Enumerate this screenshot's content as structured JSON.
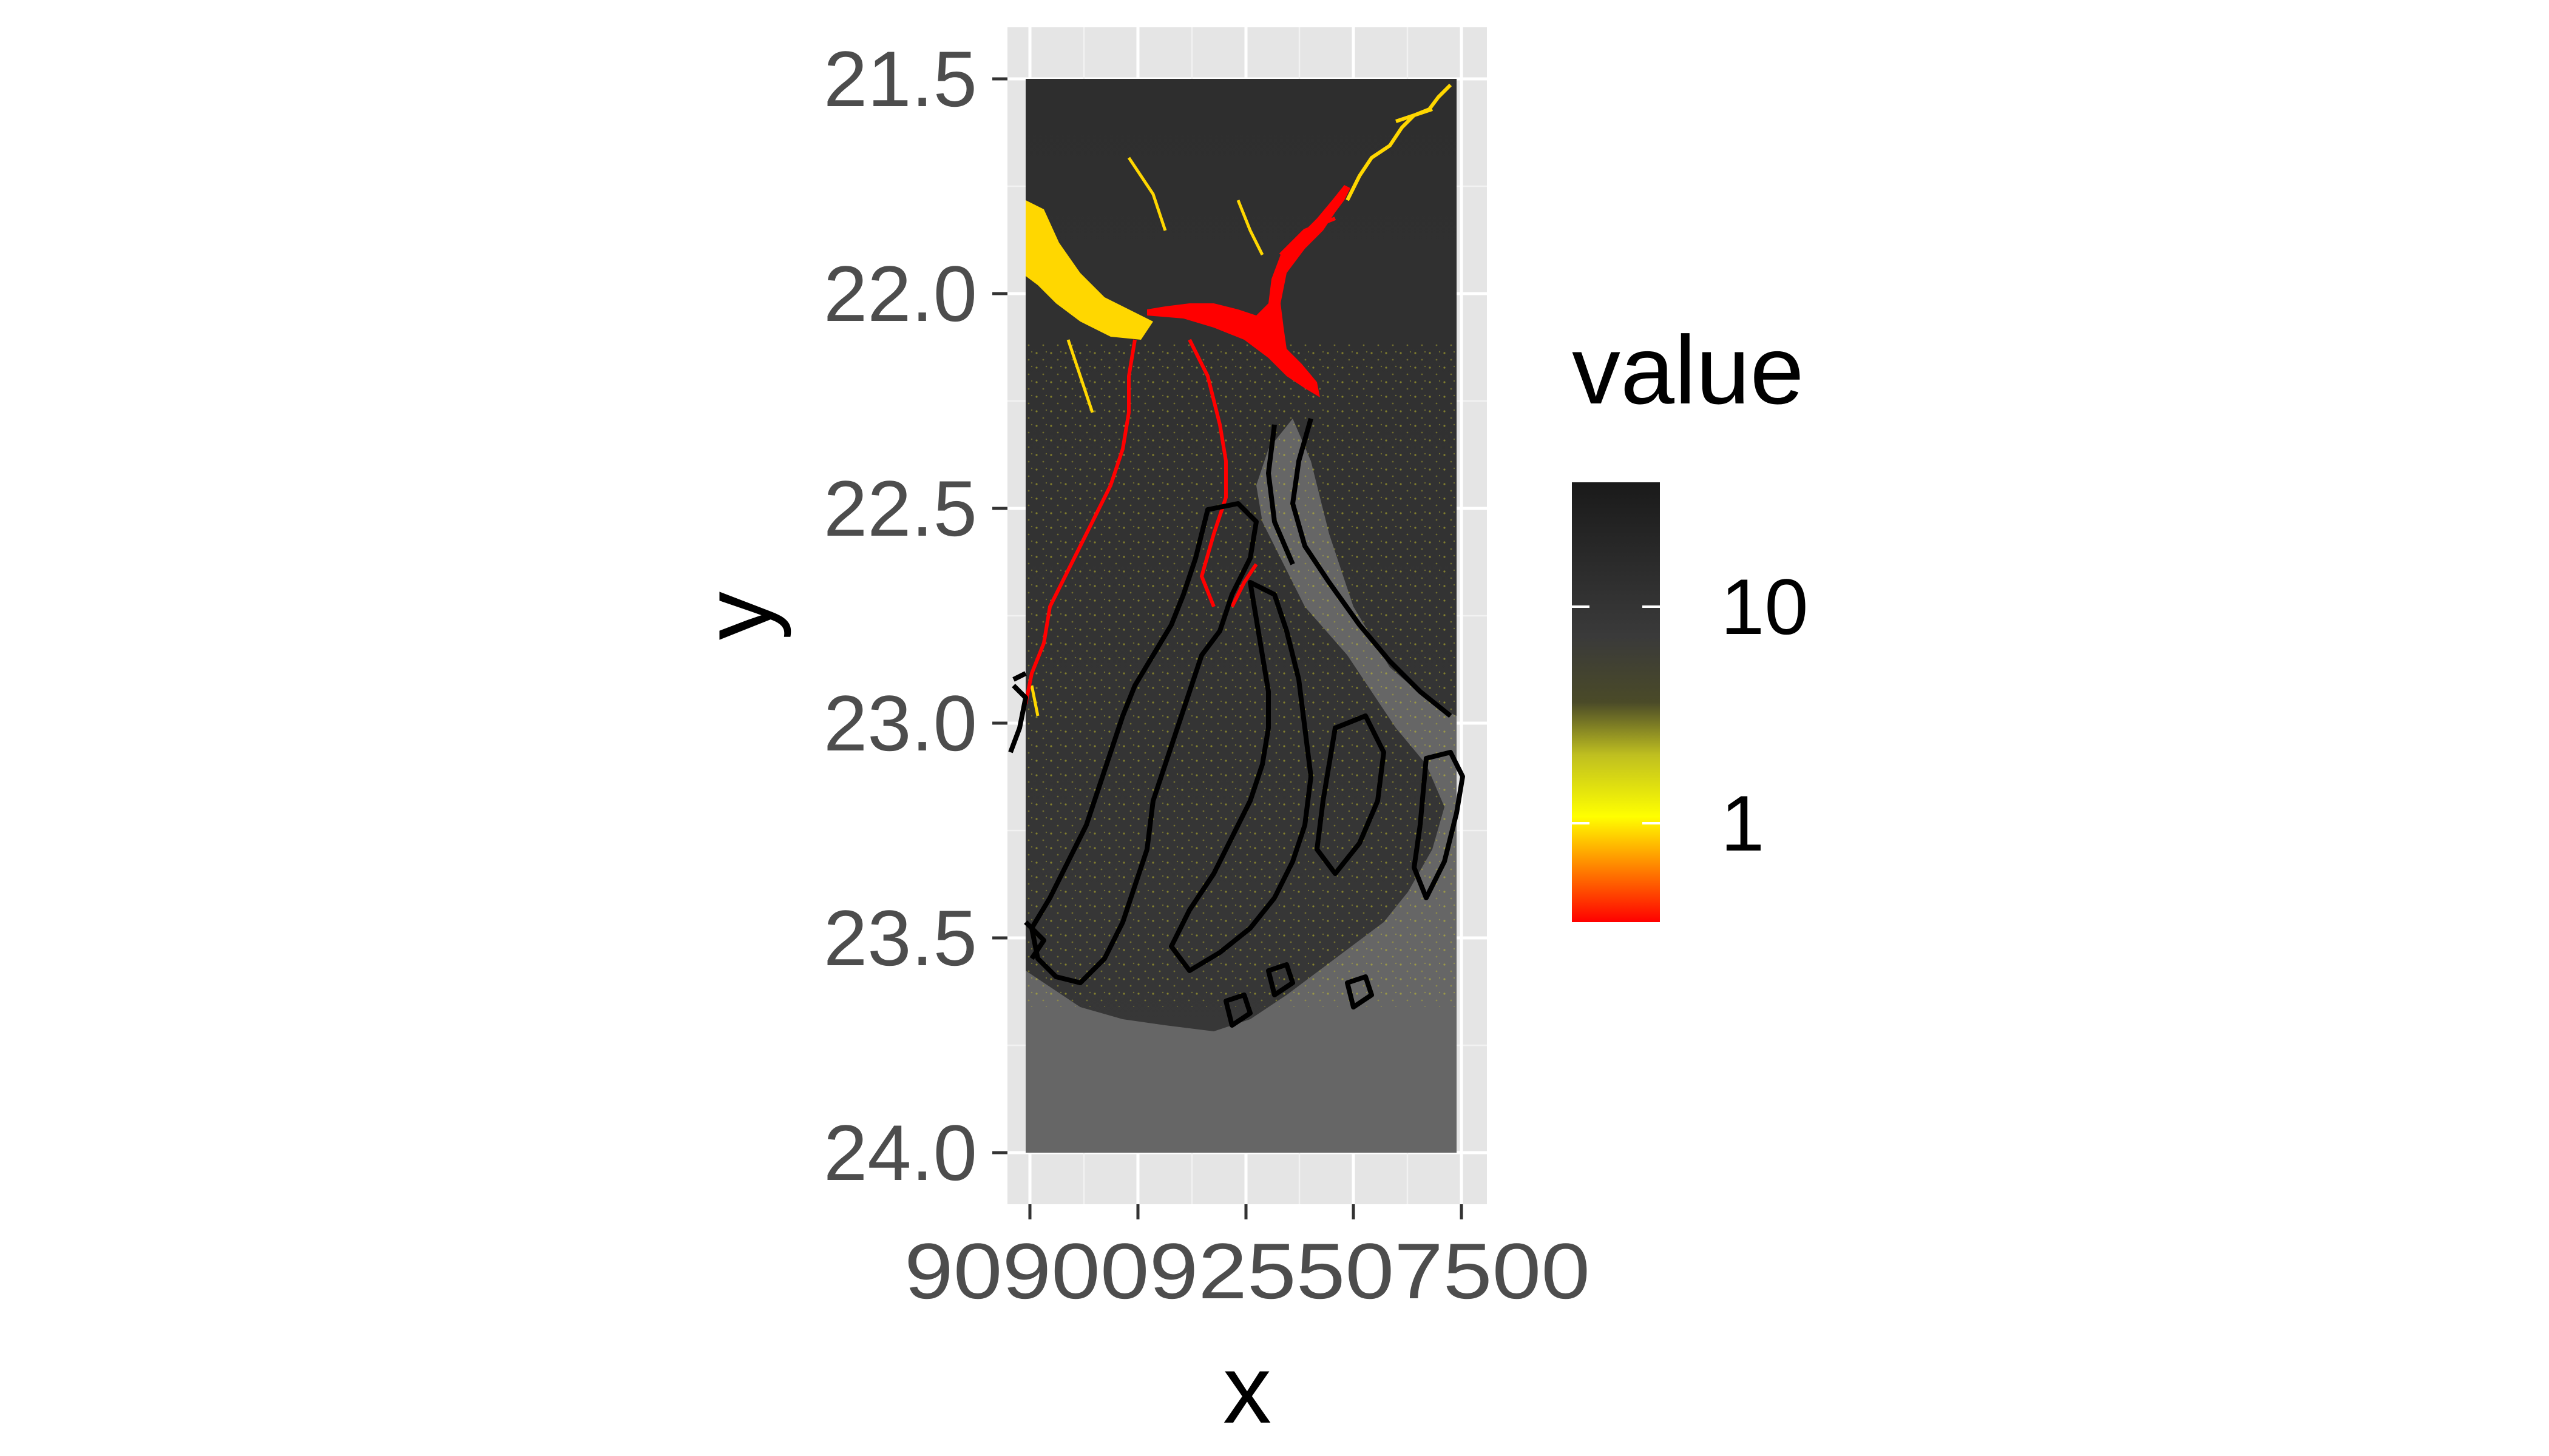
{
  "chart_data": {
    "type": "heatmap",
    "xlabel": "x",
    "ylabel": "y",
    "y_ticks": [
      "21.5",
      "22.0",
      "22.5",
      "23.0",
      "23.5",
      "24.0"
    ],
    "x_tick_labels_overlapping": [
      "90",
      "90.25",
      "90.50",
      "90.75",
      "91.00"
    ],
    "x_tick_text_as_rendered": "90900925507500",
    "ylim": [
      21.5,
      24.0
    ],
    "legend": {
      "title": "value",
      "position": "right",
      "labels": [
        "10",
        "1"
      ],
      "scale": "log",
      "gradient_colors": [
        "#ff0000",
        "#ff7f00",
        "#ffff00",
        "#bfbf20",
        "#666600",
        "#3a3a3a",
        "#1a1a1a"
      ]
    },
    "colors": {
      "panel_background": "#e5e5e5",
      "grid": "#ffffff",
      "land_dark": "#303030",
      "sea_gray": "#666666",
      "low_value_red": "#ff0000",
      "mid_value_yellow": "#ffd700",
      "coastline": "#000000"
    },
    "grid": true
  }
}
